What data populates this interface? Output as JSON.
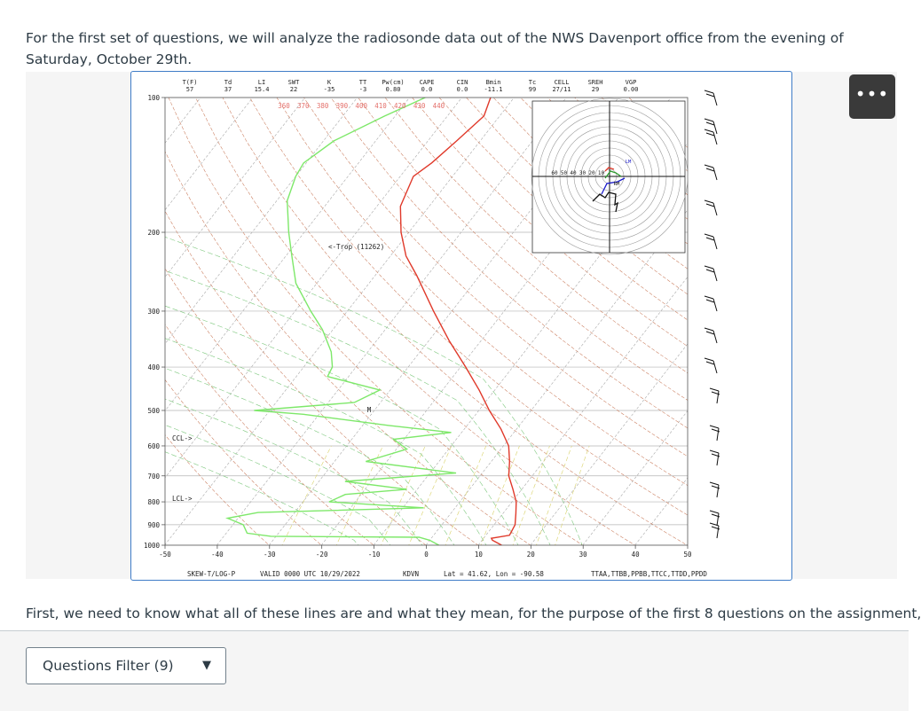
{
  "intro_text": "For the first set of questions, we will analyze the radiosonde data out of the NWS Davenport office from the evening of Saturday, October 29th.",
  "body_text": "First, we need to know what all of these lines are and what they mean, for the purpose of the first 8 questions on the assignment,",
  "more_button": "•••",
  "filter_button": {
    "label": "Questions Filter (9)",
    "icon": "caret-down-icon"
  },
  "chart_data": {
    "type": "skew-t log-p sounding",
    "header_indices": [
      {
        "name": "T(F)",
        "value": "57"
      },
      {
        "name": "Td",
        "value": "37"
      },
      {
        "name": "LI",
        "value": "15.4"
      },
      {
        "name": "SWT",
        "value": "22"
      },
      {
        "name": "K",
        "value": "-35"
      },
      {
        "name": "TT",
        "value": "-3"
      },
      {
        "name": "Pw(cm)",
        "value": "0.80"
      },
      {
        "name": "CAPE",
        "value": "0.0"
      },
      {
        "name": "CIN",
        "value": "0.0"
      },
      {
        "name": "Bmin",
        "value": "-11.1"
      },
      {
        "name": "Tc",
        "value": "99"
      },
      {
        "name": "CELL",
        "value": "27/11"
      },
      {
        "name": "SREH",
        "value": "29"
      },
      {
        "name": "VGP",
        "value": "0.00"
      }
    ],
    "pressure_ticks": [
      100,
      200,
      300,
      400,
      500,
      600,
      700,
      800,
      900,
      1000
    ],
    "temperature_ticks": [
      -50,
      -40,
      -30,
      -20,
      -10,
      0,
      10,
      20,
      30,
      40,
      50
    ],
    "theta_e_labels": [
      "360",
      "370",
      "380",
      "390",
      "400",
      "410",
      "420",
      "430",
      "440"
    ],
    "footer": {
      "title": "SKEW-T/LOG-P",
      "valid": "VALID 0000 UTC 10/29/2022",
      "station": "KDVN",
      "location": "Lat = 41.62, Lon = -90.58",
      "codes": "TTAA,TTBB,PPBB,TTCC,TTDD,PPDD"
    },
    "annotations": {
      "trop": "<-Trop (11262)",
      "ccl": "CCL->",
      "lcl": "LCL->",
      "m": "M",
      "lm": "LM",
      "rm": "RM"
    },
    "hodograph_rings": [
      "60",
      "50",
      "40",
      "30",
      "20",
      "10"
    ],
    "temperature_profile": [
      {
        "p": 1000,
        "t": 14.5
      },
      {
        "p": 975,
        "t": 12.0
      },
      {
        "p": 965,
        "t": 11.5
      },
      {
        "p": 950,
        "t": 14.5
      },
      {
        "p": 900,
        "t": 14.0
      },
      {
        "p": 850,
        "t": 12.5
      },
      {
        "p": 800,
        "t": 10.8
      },
      {
        "p": 750,
        "t": 8.3
      },
      {
        "p": 700,
        "t": 5.5
      },
      {
        "p": 650,
        "t": 3.5
      },
      {
        "p": 600,
        "t": 1.0
      },
      {
        "p": 550,
        "t": -3.0
      },
      {
        "p": 500,
        "t": -8.0
      },
      {
        "p": 450,
        "t": -13.0
      },
      {
        "p": 400,
        "t": -19.0
      },
      {
        "p": 350,
        "t": -26.0
      },
      {
        "p": 300,
        "t": -33.5
      },
      {
        "p": 250,
        "t": -42.0
      },
      {
        "p": 226,
        "t": -47.0
      },
      {
        "p": 200,
        "t": -51.5
      },
      {
        "p": 175,
        "t": -55.5
      },
      {
        "p": 150,
        "t": -57.5
      },
      {
        "p": 140,
        "t": -56.0
      },
      {
        "p": 125,
        "t": -54.5
      },
      {
        "p": 110,
        "t": -53.0
      },
      {
        "p": 100,
        "t": -54.5
      }
    ],
    "dewpoint_profile": [
      {
        "p": 1000,
        "t": 2.5
      },
      {
        "p": 975,
        "t": 0.0
      },
      {
        "p": 960,
        "t": -2.5
      },
      {
        "p": 955,
        "t": -31.0
      },
      {
        "p": 940,
        "t": -36.0
      },
      {
        "p": 900,
        "t": -38.0
      },
      {
        "p": 870,
        "t": -42.0
      },
      {
        "p": 845,
        "t": -37.0
      },
      {
        "p": 825,
        "t": -6.0
      },
      {
        "p": 800,
        "t": -25.0
      },
      {
        "p": 770,
        "t": -23.0
      },
      {
        "p": 750,
        "t": -12.0
      },
      {
        "p": 720,
        "t": -25.0
      },
      {
        "p": 690,
        "t": -5.0
      },
      {
        "p": 650,
        "t": -24.0
      },
      {
        "p": 610,
        "t": -18.0
      },
      {
        "p": 580,
        "t": -22.0
      },
      {
        "p": 560,
        "t": -12.0
      },
      {
        "p": 540,
        "t": -25.0
      },
      {
        "p": 510,
        "t": -43.0
      },
      {
        "p": 500,
        "t": -53.0
      },
      {
        "p": 480,
        "t": -35.0
      },
      {
        "p": 450,
        "t": -32.0
      },
      {
        "p": 420,
        "t": -44.0
      },
      {
        "p": 400,
        "t": -44.5
      },
      {
        "p": 370,
        "t": -47.0
      },
      {
        "p": 330,
        "t": -52.0
      },
      {
        "p": 300,
        "t": -57.0
      },
      {
        "p": 260,
        "t": -64.0
      },
      {
        "p": 225,
        "t": -69.0
      },
      {
        "p": 200,
        "t": -73.0
      },
      {
        "p": 170,
        "t": -78.0
      },
      {
        "p": 150,
        "t": -80.0
      },
      {
        "p": 140,
        "t": -80.5
      },
      {
        "p": 125,
        "t": -78.0
      },
      {
        "p": 110,
        "t": -72.0
      },
      {
        "p": 100,
        "t": -67.0
      }
    ],
    "colors": {
      "temperature": "#e0392a",
      "dewpoint": "#7ee86a",
      "isobar": "#b5b5b5",
      "dry_adiabat": "#c97a5a",
      "mixing_ratio": "#d9d26a",
      "moist_adiabat": "#7ec87e",
      "isotherm": "#a7a7a7",
      "hodograph_wind": "#1a1acc"
    }
  }
}
